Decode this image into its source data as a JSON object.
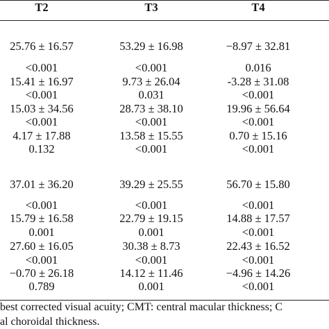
{
  "table": {
    "headers": [
      "T2",
      "T3",
      "T4"
    ],
    "rows": [
      [
        "25.76 ± 16.57",
        "53.29 ± 16.98",
        "−8.97 ± 32.81"
      ],
      [
        "<0.001",
        "<0.001",
        "0.016"
      ],
      [
        "15.41 ± 16.97",
        "9.73 ± 26.04",
        "-3.28 ± 31.08"
      ],
      [
        "<0.001",
        "0.031",
        "<0.001"
      ],
      [
        "15.03 ± 34.56",
        "28.73 ± 38.10",
        "19.96 ± 56.64"
      ],
      [
        "<0.001",
        "<0.001",
        "<0.001"
      ],
      [
        "4.17 ± 17.88",
        "13.58 ± 15.55",
        "0.70 ± 15.16"
      ],
      [
        "0.132",
        "<0.001",
        "<0.001"
      ],
      [
        "37.01 ± 36.20",
        "39.29 ± 25.55",
        "56.70 ± 15.80"
      ],
      [
        "<0.001",
        "<0.001",
        "<0.001"
      ],
      [
        "15.79 ± 16.58",
        "22.79 ± 19.15",
        "14.88 ± 17.57"
      ],
      [
        "0.001",
        "0.001",
        "<0.001"
      ],
      [
        "27.60 ± 16.05",
        "30.38 ± 8.73",
        "22.43 ± 16.52"
      ],
      [
        "<0.001",
        "<0.001",
        "<0.001"
      ],
      [
        "−0.70 ± 26.18",
        "14.12 ± 11.46",
        "−4.96 ± 14.26"
      ],
      [
        "0.789",
        "0.001",
        "<0.001"
      ]
    ]
  },
  "footnote": {
    "line1": "best corrected visual acuity; CMT: central macular thickness; C",
    "line2": "al choroidal thickness."
  }
}
